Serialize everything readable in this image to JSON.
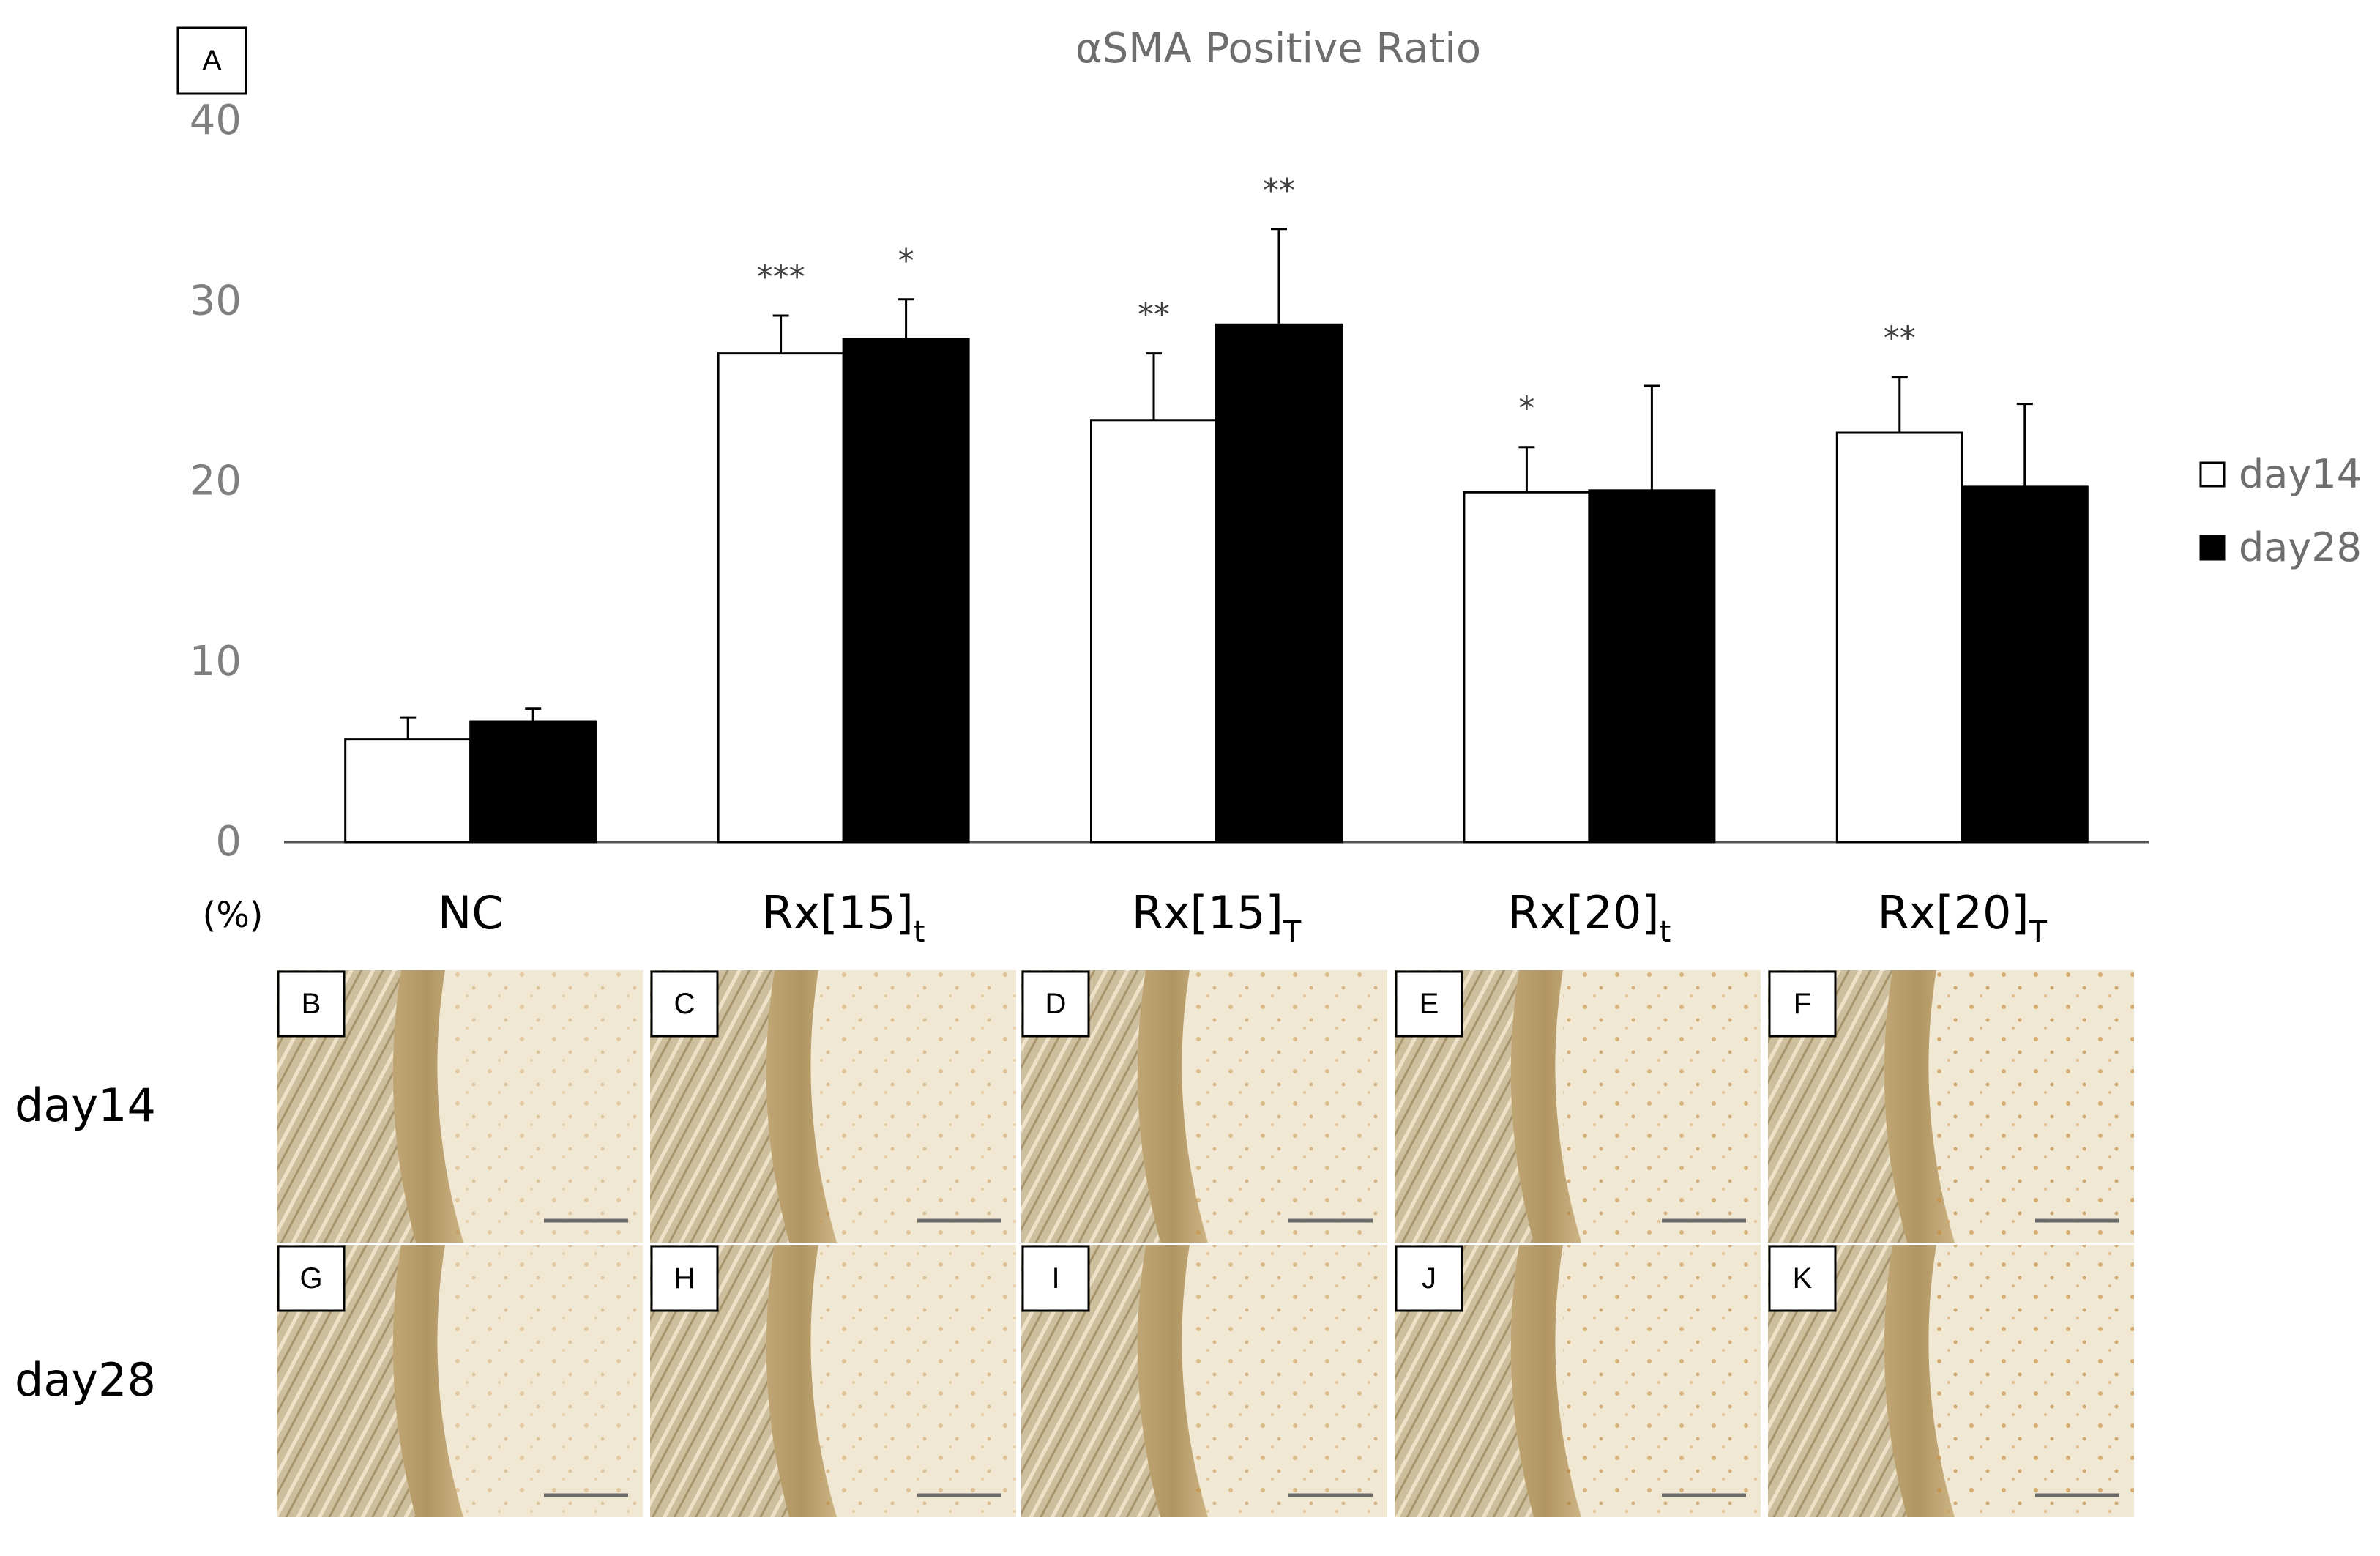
{
  "panel_a_label": "A",
  "chart_data": {
    "type": "bar",
    "title": "αSMA Positive Ratio",
    "ylabel": "(%)",
    "xlabel": "",
    "ylim": [
      0,
      40
    ],
    "yticks": [
      0,
      10,
      20,
      30,
      40
    ],
    "grid": false,
    "legend_position": "right",
    "categories": [
      {
        "base": "NC",
        "sub": ""
      },
      {
        "base": "Rx[15]",
        "sub": "t"
      },
      {
        "base": "Rx[15]",
        "sub": "T"
      },
      {
        "base": "Rx[20]",
        "sub": "t"
      },
      {
        "base": "Rx[20]",
        "sub": "T"
      }
    ],
    "series": [
      {
        "name": "day14",
        "fill": "#ffffff",
        "values": [
          5.7,
          27.1,
          23.4,
          19.4,
          22.7
        ],
        "errors": [
          1.2,
          2.1,
          3.7,
          2.5,
          3.1
        ],
        "significance": [
          "",
          "***",
          "**",
          "*",
          "**"
        ]
      },
      {
        "name": "day28",
        "fill": "#000000",
        "values": [
          6.7,
          27.9,
          28.7,
          19.5,
          19.7
        ],
        "errors": [
          0.7,
          2.2,
          5.3,
          5.8,
          4.6
        ],
        "significance": [
          "",
          "*",
          "**",
          "",
          ""
        ]
      }
    ]
  },
  "micrographs": {
    "rows": [
      {
        "label": "day14",
        "panels": [
          "B",
          "C",
          "D",
          "E",
          "F"
        ]
      },
      {
        "label": "day28",
        "panels": [
          "G",
          "H",
          "I",
          "J",
          "K"
        ]
      }
    ]
  }
}
